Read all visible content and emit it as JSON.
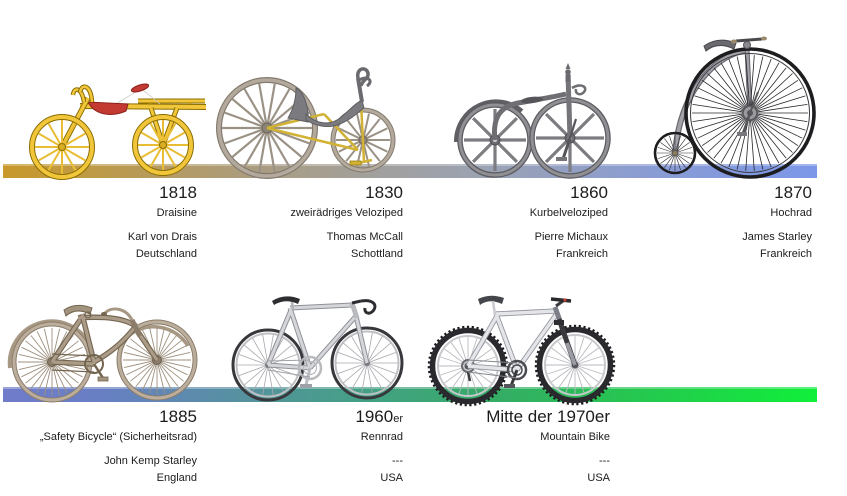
{
  "rows": [
    {
      "bar_gradient": [
        "#c8982b",
        "#a2a09c",
        "#7b97e8"
      ],
      "entries": [
        {
          "year": "1818",
          "year_suffix": "",
          "name": "Draisine",
          "creator": "Karl von Drais",
          "country": "Deutschland",
          "illustration": "draisine"
        },
        {
          "year": "1830",
          "year_suffix": "",
          "name": "zweirädriges Veloziped",
          "creator": "Thomas McCall",
          "country": "Schottland",
          "illustration": "two-wheeled-velocipede"
        },
        {
          "year": "1860",
          "year_suffix": "",
          "name": "Kurbelveloziped",
          "creator": "Pierre Michaux",
          "country": "Frankreich",
          "illustration": "crank-velocipede"
        },
        {
          "year": "1870",
          "year_suffix": "",
          "name": "Hochrad",
          "creator": "James Starley",
          "country": "Frankreich",
          "illustration": "penny-farthing"
        }
      ]
    },
    {
      "bar_gradient": [
        "#6f7cca",
        "#43a184",
        "#10ef3a"
      ],
      "entries": [
        {
          "year": "1885",
          "year_suffix": "",
          "name": "„Safety Bicycle“ (Sicherheitsrad)",
          "creator": "John Kemp Starley",
          "country": "England",
          "illustration": "safety-bicycle"
        },
        {
          "year": "1960",
          "year_suffix": "er",
          "name": "Rennrad",
          "creator": "---",
          "country": "USA",
          "illustration": "road-bike"
        },
        {
          "year": "Mitte der 1970er",
          "year_suffix": "",
          "name": "Mountain Bike",
          "creator": "---",
          "country": "USA",
          "illustration": "mountain-bike"
        }
      ]
    }
  ]
}
